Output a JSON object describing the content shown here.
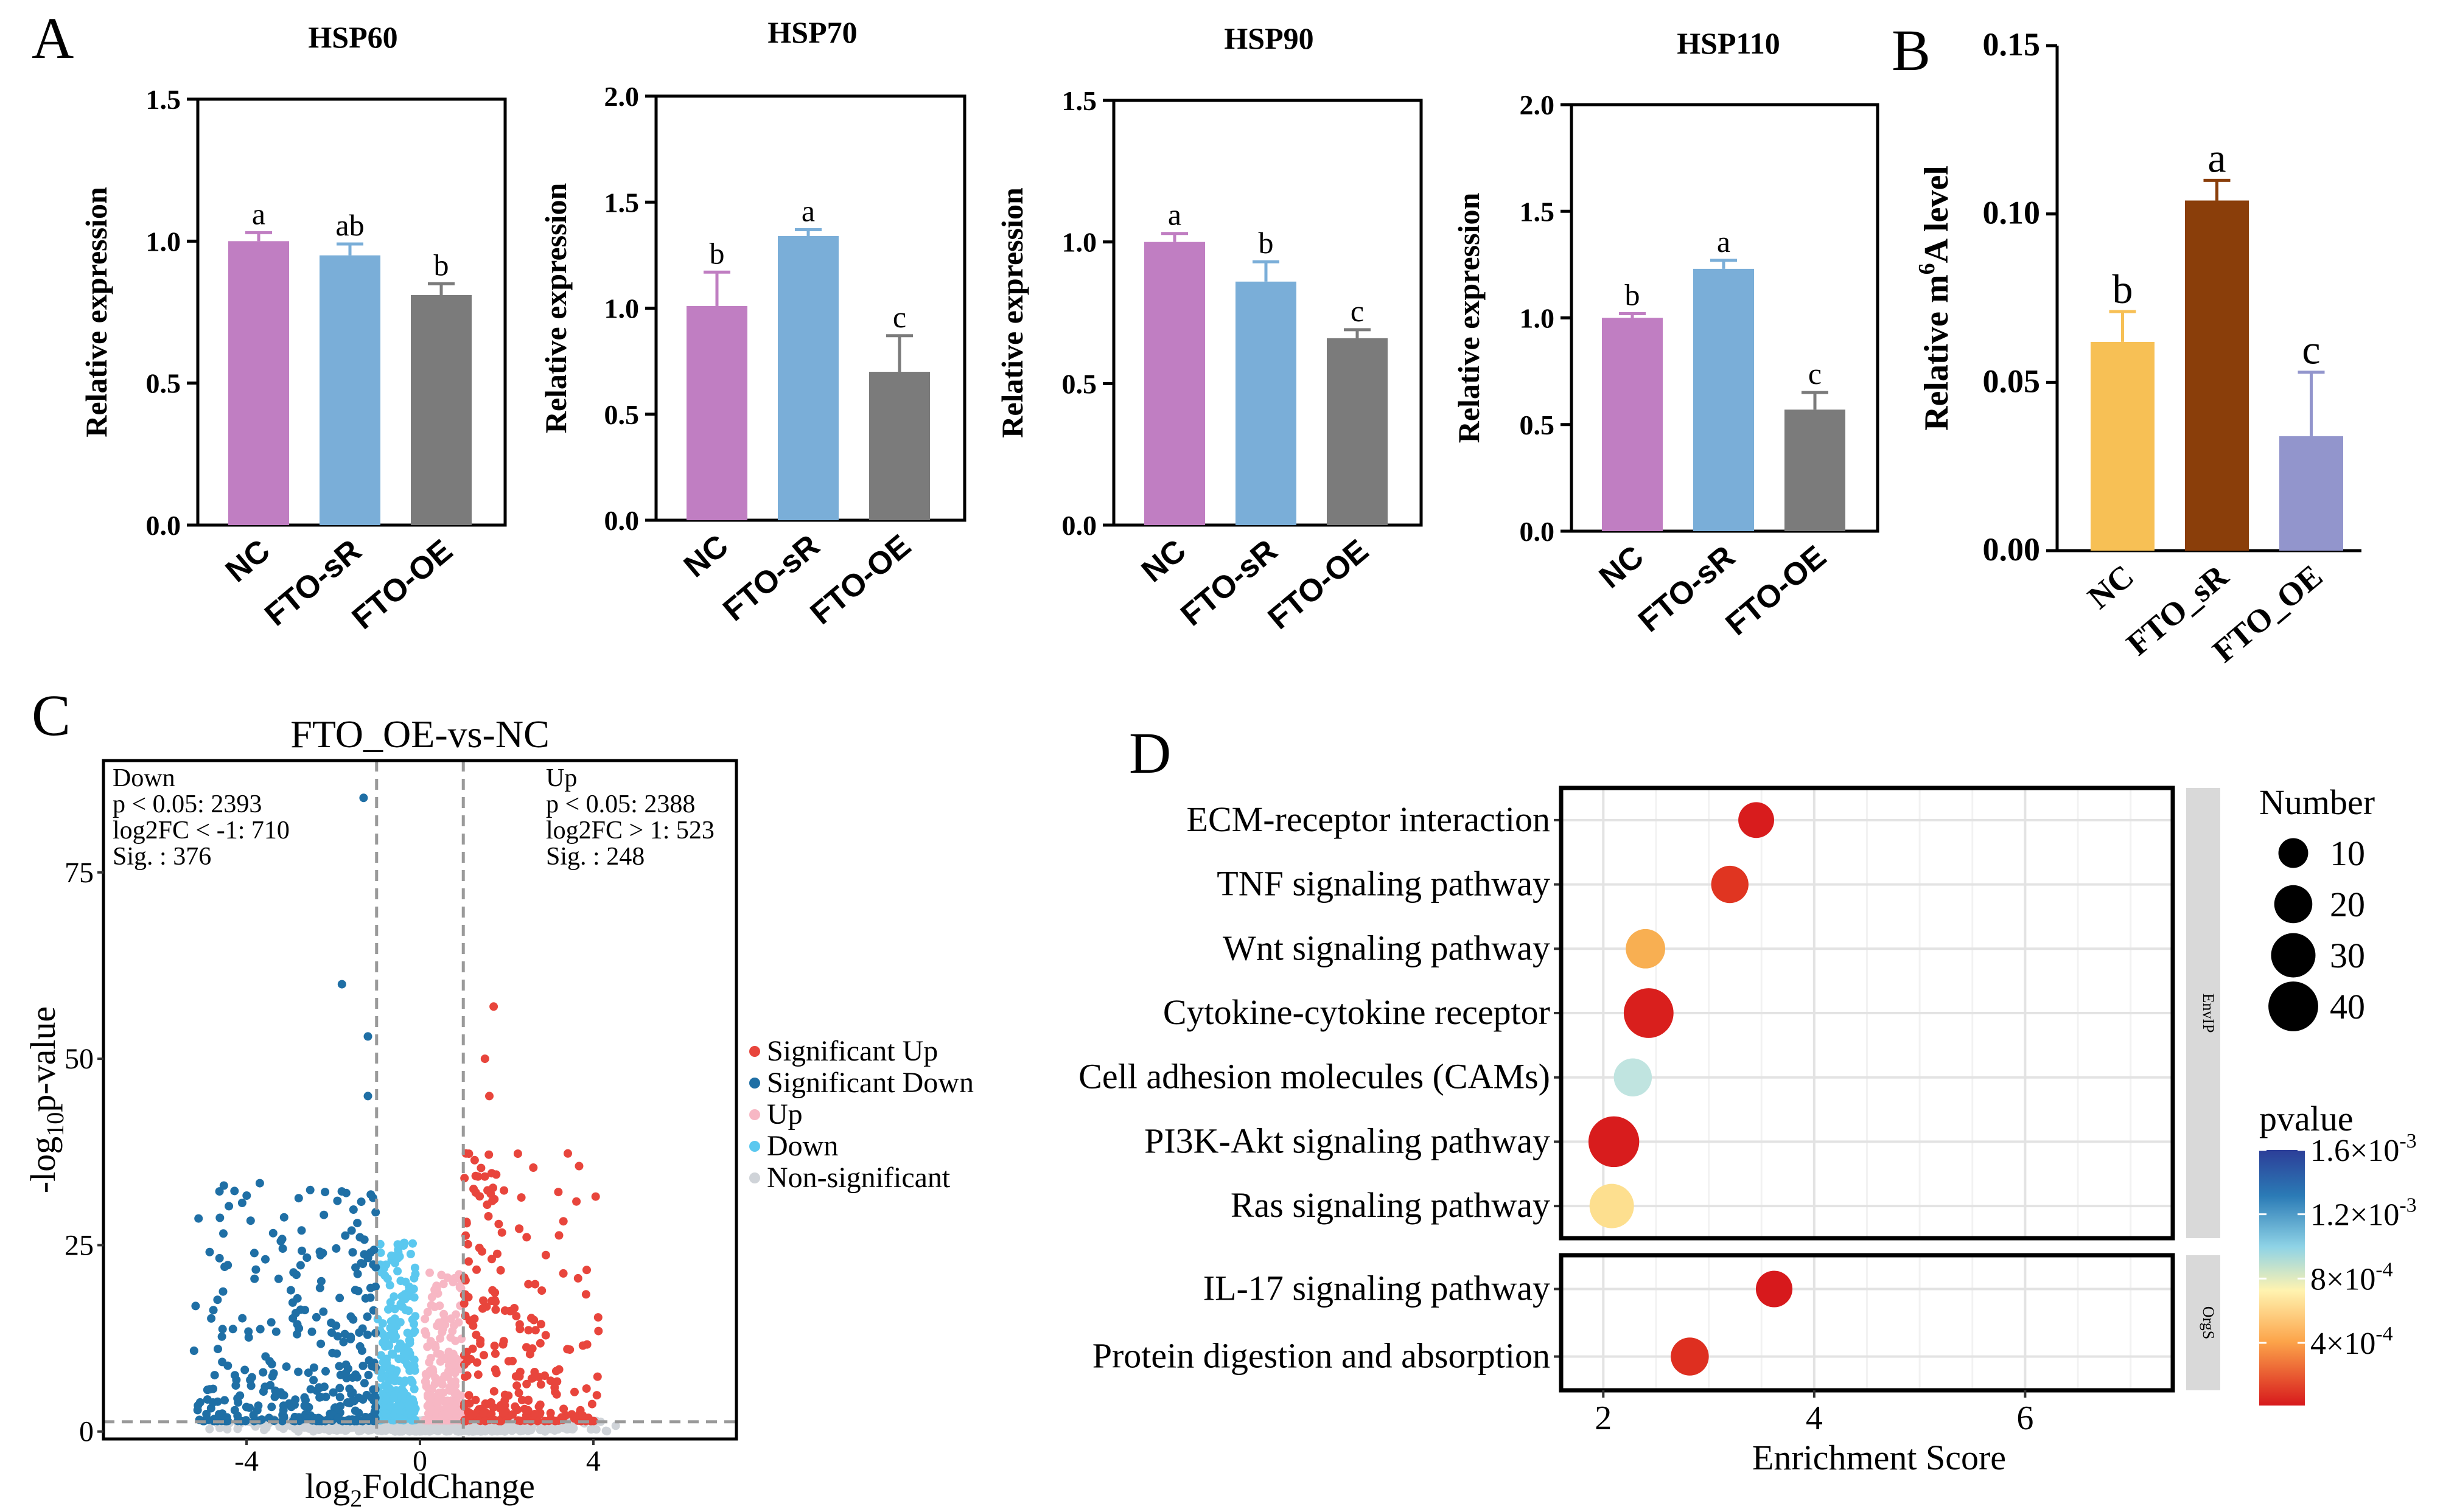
{
  "panels": {
    "A": "A",
    "B": "B",
    "C": "C",
    "D": "D"
  },
  "colors": {
    "nc": "#c07ec2",
    "sr": "#7aaed8",
    "oe": "#7b7b7b",
    "b_nc": "#f7c055",
    "b_sr": "#8a3e0a",
    "b_oe": "#9295cc",
    "sig_up": "#e8453c",
    "sig_down": "#1f6fa5",
    "up": "#f7b7c4",
    "down": "#5bc8ef",
    "nonsig": "#cfd3d8"
  },
  "chart_data": [
    {
      "id": "hsp60",
      "type": "bar",
      "title": "HSP60",
      "ylabel": "Relative expression",
      "categories": [
        "NC",
        "FTO-sR",
        "FTO-OE"
      ],
      "values": [
        1.0,
        0.95,
        0.81
      ],
      "errors": [
        0.03,
        0.04,
        0.04
      ],
      "letters": [
        "a",
        "ab",
        "b"
      ],
      "ylim": [
        0,
        1.5
      ],
      "ticks": [
        "0.0",
        "0.5",
        "1.0",
        "1.5"
      ]
    },
    {
      "id": "hsp70",
      "type": "bar",
      "title": "HSP70",
      "ylabel": "Relative expression",
      "categories": [
        "NC",
        "FTO-sR",
        "FTO-OE"
      ],
      "values": [
        1.01,
        1.34,
        0.7
      ],
      "errors": [
        0.16,
        0.03,
        0.17
      ],
      "letters": [
        "b",
        "a",
        "c"
      ],
      "ylim": [
        0,
        2.0
      ],
      "ticks": [
        "0.0",
        "0.5",
        "1.0",
        "1.5",
        "2.0"
      ]
    },
    {
      "id": "hsp90",
      "type": "bar",
      "title": "HSP90",
      "ylabel": "Relative expression",
      "categories": [
        "NC",
        "FTO-sR",
        "FTO-OE"
      ],
      "values": [
        1.0,
        0.86,
        0.66
      ],
      "errors": [
        0.03,
        0.07,
        0.03
      ],
      "letters": [
        "a",
        "b",
        "c"
      ],
      "ylim": [
        0,
        1.5
      ],
      "ticks": [
        "0.0",
        "0.5",
        "1.0",
        "1.5"
      ]
    },
    {
      "id": "hsp110",
      "type": "bar",
      "title": "HSP110",
      "ylabel": "Relative expression",
      "categories": [
        "NC",
        "FTO-sR",
        "FTO-OE"
      ],
      "values": [
        1.0,
        1.23,
        0.57
      ],
      "errors": [
        0.02,
        0.04,
        0.08
      ],
      "letters": [
        "b",
        "a",
        "c"
      ],
      "ylim": [
        0,
        2.0
      ],
      "ticks": [
        "0.0",
        "0.5",
        "1.0",
        "1.5",
        "2.0"
      ]
    },
    {
      "id": "m6a",
      "type": "bar",
      "title": "",
      "ylabel_pre": "Relative m",
      "ylabel_sup": "6",
      "ylabel_post": "A level",
      "categories": [
        "NC",
        "FTO_sR",
        "FTO_OE"
      ],
      "values": [
        0.062,
        0.104,
        0.034
      ],
      "errors": [
        0.009,
        0.006,
        0.019
      ],
      "letters": [
        "b",
        "a",
        "c"
      ],
      "ylim": [
        0,
        0.15
      ],
      "ticks": [
        "0.00",
        "0.05",
        "0.10",
        "0.15"
      ]
    },
    {
      "id": "volcano",
      "type": "scatter",
      "title": "FTO_OE-vs-NC",
      "xlabel_pre": "log",
      "xlabel_sub": "2",
      "xlabel_post": "FoldChange",
      "ylabel_pre": "-log",
      "ylabel_sub": "10",
      "ylabel_post": "p-value",
      "xlim": [
        -7.3,
        7.3
      ],
      "ylim": [
        -1,
        90
      ],
      "xticks": [
        -4,
        0,
        4
      ],
      "yticks": [
        0,
        25,
        50,
        75
      ],
      "xtick_labels": [
        "-4",
        "0",
        "4"
      ],
      "ytick_labels": [
        "0",
        "25",
        "50",
        "75"
      ],
      "thresholds": {
        "log2fc": 1,
        "p": 0.05
      },
      "down_stats": [
        "Down",
        "p < 0.05: 2393",
        "log2FC < -1: 710",
        "Sig. : 376"
      ],
      "up_stats": [
        "Up",
        "p < 0.05: 2388",
        "log2FC > 1: 523",
        "Sig. : 248"
      ],
      "legend": [
        "Significant Up",
        "Significant Down",
        "Up",
        "Down",
        "Non-significant"
      ],
      "highlighted_points": [
        {
          "x": -1.3,
          "y": 85,
          "group": "Significant Down"
        },
        {
          "x": -1.8,
          "y": 60,
          "group": "Significant Down"
        },
        {
          "x": -1.2,
          "y": 53,
          "group": "Significant Down"
        },
        {
          "x": -1.2,
          "y": 45,
          "group": "Significant Down"
        },
        {
          "x": 1.7,
          "y": 57,
          "group": "Significant Up"
        },
        {
          "x": 1.5,
          "y": 50,
          "group": "Significant Up"
        },
        {
          "x": 1.6,
          "y": 45,
          "group": "Significant Up"
        }
      ]
    },
    {
      "id": "kegg",
      "type": "scatter",
      "xlabel": "Enrichment Score",
      "xlim": [
        1.6,
        7.4
      ],
      "xticks": [
        2,
        4,
        6
      ],
      "xtick_labels": [
        "2",
        "4",
        "6"
      ],
      "groups": [
        {
          "label": "EnvIP",
          "terms": [
            {
              "name": "ECM-receptor interaction",
              "score": 3.45,
              "number": 17,
              "pvalue": 2e-05
            },
            {
              "name": "TNF signaling pathway",
              "score": 3.2,
              "number": 19,
              "pvalue": 0.0001
            },
            {
              "name": "Wnt signaling pathway",
              "score": 2.4,
              "number": 22,
              "pvalue": 0.0005
            },
            {
              "name": "Cytokine-cytokine receptor",
              "score": 2.43,
              "number": 40,
              "pvalue": 3e-05
            },
            {
              "name": "Cell adhesion molecules (CAMs)",
              "score": 2.28,
              "number": 20,
              "pvalue": 0.0011
            },
            {
              "name": "PI3K-Akt signaling pathway",
              "score": 2.1,
              "number": 42,
              "pvalue": 2e-05
            },
            {
              "name": "Ras signaling pathway",
              "score": 2.08,
              "number": 30,
              "pvalue": 0.00075
            }
          ]
        },
        {
          "label": "OrgS",
          "terms": [
            {
              "name": "IL-17 signaling pathway",
              "score": 3.62,
              "number": 18,
              "pvalue": 1e-05
            },
            {
              "name": "Protein digestion and absorption",
              "score": 2.82,
              "number": 20,
              "pvalue": 8e-05
            }
          ]
        }
      ],
      "size_legend_title": "Number",
      "size_legend": [
        10,
        20,
        30,
        40
      ],
      "color_legend_title": "pvalue",
      "color_legend": [
        {
          "pre": "1.6×10",
          "sup": "-3",
          "v": 0.0016
        },
        {
          "pre": "1.2×10",
          "sup": "-3",
          "v": 0.0012
        },
        {
          "pre": "8×10",
          "sup": "-4",
          "v": 0.0008
        },
        {
          "pre": "4×10",
          "sup": "-4",
          "v": 0.0004
        }
      ]
    }
  ]
}
